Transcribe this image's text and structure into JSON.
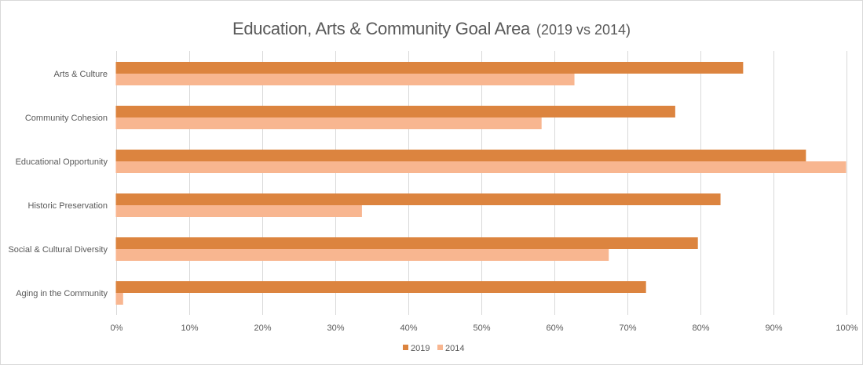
{
  "chart_data": {
    "type": "bar",
    "orientation": "horizontal",
    "title": "Education, Arts & Community Goal Area",
    "subtitle": "(2019 vs 2014)",
    "categories": [
      "Arts & Culture",
      "Community Cohesion",
      "Educational Opportunity",
      "Historic Preservation",
      "Social & Cultural Diversity",
      "Aging in the Community"
    ],
    "series": [
      {
        "name": "2019",
        "color": "#dc843f",
        "values": [
          85.9,
          76.6,
          94.5,
          82.8,
          79.7,
          72.6
        ]
      },
      {
        "name": "2014",
        "color": "#f8b690",
        "values": [
          62.8,
          58.3,
          100,
          33.7,
          67.5,
          1.0
        ]
      }
    ],
    "xlim": [
      0,
      100
    ],
    "x_ticks": [
      "0%",
      "10%",
      "20%",
      "30%",
      "40%",
      "50%",
      "60%",
      "70%",
      "80%",
      "90%",
      "100%"
    ],
    "grid": true,
    "legend_position": "bottom",
    "xlabel": "",
    "ylabel": ""
  }
}
